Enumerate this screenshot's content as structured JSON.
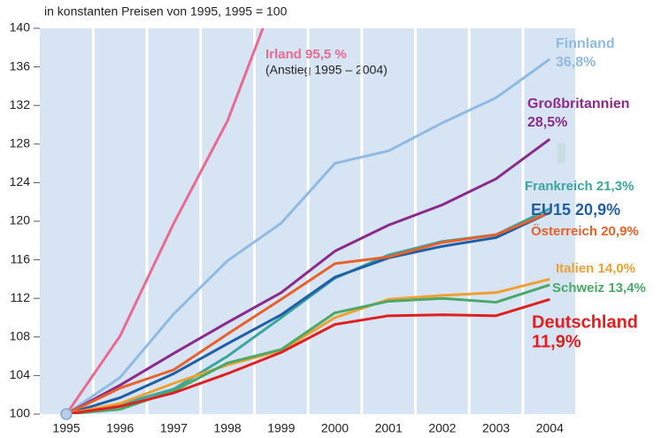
{
  "chart_data": {
    "type": "line",
    "subtitle": "in konstanten Preisen von 1995, 1995 = 100",
    "annotation": "(Anstieg 1995 – 2004)",
    "categories": [
      "1995",
      "1996",
      "1997",
      "1998",
      "1999",
      "2000",
      "2001",
      "2002",
      "2003",
      "2004"
    ],
    "ylim": [
      100,
      140
    ],
    "yticks": [
      100,
      104,
      108,
      112,
      116,
      120,
      124,
      128,
      132,
      136,
      140
    ],
    "series": [
      {
        "name": "Irland",
        "end_label": "95,5 %",
        "color": "#ea6a92",
        "values": [
          100,
          108.1,
          119.8,
          130.4,
          145,
          null,
          null,
          null,
          null,
          null
        ]
      },
      {
        "name": "Finnland",
        "end_label": "36,8%",
        "color": "#8fbbe2",
        "values": [
          100,
          103.8,
          110.4,
          115.9,
          119.8,
          126.0,
          127.3,
          130.2,
          132.8,
          136.8
        ]
      },
      {
        "name": "Großbritannien",
        "end_label": "28,5%",
        "color": "#8b2a8b",
        "values": [
          100,
          103.0,
          106.3,
          109.5,
          112.6,
          116.9,
          119.6,
          121.7,
          124.4,
          128.5
        ]
      },
      {
        "name": "Frankreich",
        "end_label": "21,3%",
        "color": "#3aa6a0",
        "values": [
          100,
          101.0,
          102.6,
          106.0,
          110.0,
          114.1,
          116.5,
          117.9,
          118.6,
          121.3
        ]
      },
      {
        "name": "EU15",
        "end_label": "20,9%",
        "color": "#1f5fa8",
        "values": [
          100,
          101.7,
          104.2,
          107.3,
          110.3,
          114.2,
          116.2,
          117.4,
          118.3,
          120.9
        ]
      },
      {
        "name": "Österreich",
        "end_label": "20,9%",
        "color": "#e8602a",
        "values": [
          100,
          102.7,
          104.6,
          108.3,
          111.9,
          115.6,
          116.3,
          117.8,
          118.6,
          120.9
        ]
      },
      {
        "name": "Italien",
        "end_label": "14,0%",
        "color": "#f0a030",
        "values": [
          100,
          101.1,
          103.2,
          105.1,
          106.6,
          110.0,
          111.9,
          112.3,
          112.6,
          114.0
        ]
      },
      {
        "name": "Schweiz",
        "end_label": "13,4%",
        "color": "#4aa868",
        "values": [
          100,
          100.5,
          102.4,
          105.3,
          106.7,
          110.5,
          111.7,
          112.0,
          111.6,
          113.4
        ]
      },
      {
        "name": "Deutschland",
        "end_label": "11,9%",
        "color": "#e02020",
        "values": [
          100,
          100.8,
          102.2,
          104.2,
          106.4,
          109.3,
          110.2,
          110.3,
          110.2,
          111.9
        ]
      }
    ]
  }
}
